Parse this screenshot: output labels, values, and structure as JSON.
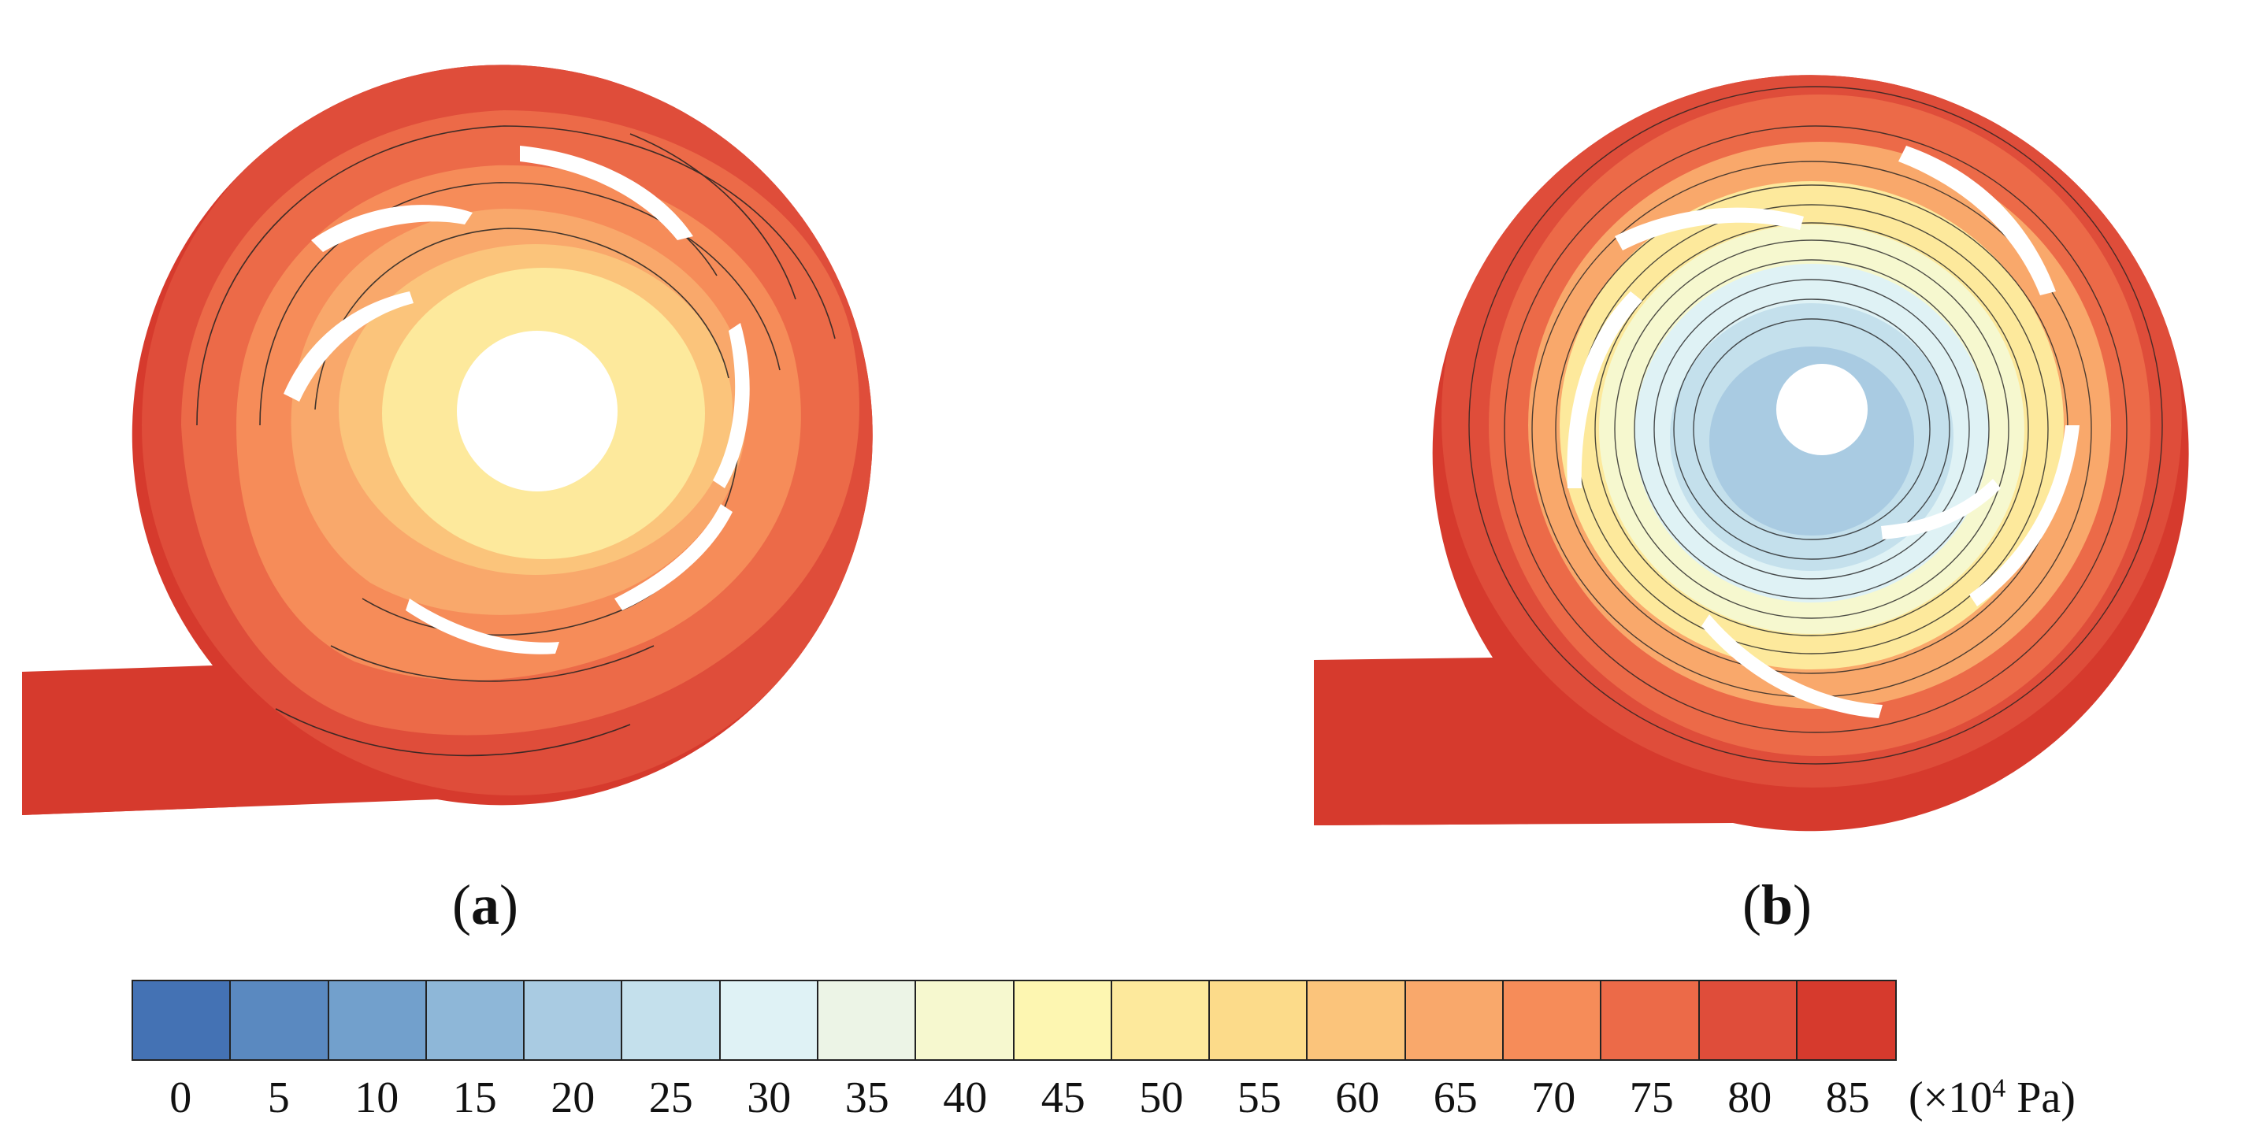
{
  "panels": [
    {
      "id": "a",
      "label": "a"
    },
    {
      "id": "b",
      "label": "b"
    }
  ],
  "colorbar": {
    "colors": [
      "#4472b4",
      "#5a89c0",
      "#72a0cc",
      "#8eb7d8",
      "#a9cbe2",
      "#c4e0ec",
      "#dff2f5",
      "#ecf4e6",
      "#f6f8cf",
      "#fdf6b1",
      "#fde99c",
      "#fcdb8a",
      "#fbc47b",
      "#f9a86b",
      "#f68c59",
      "#ec6a48",
      "#df4d3a",
      "#d63a2d"
    ],
    "ticks": [
      "0",
      "5",
      "10",
      "15",
      "20",
      "25",
      "30",
      "35",
      "40",
      "45",
      "50",
      "55",
      "60",
      "65",
      "70",
      "75",
      "80",
      "85"
    ],
    "unit_prefix": "(×10",
    "unit_exp": "4",
    "unit_suffix": " Pa)"
  }
}
